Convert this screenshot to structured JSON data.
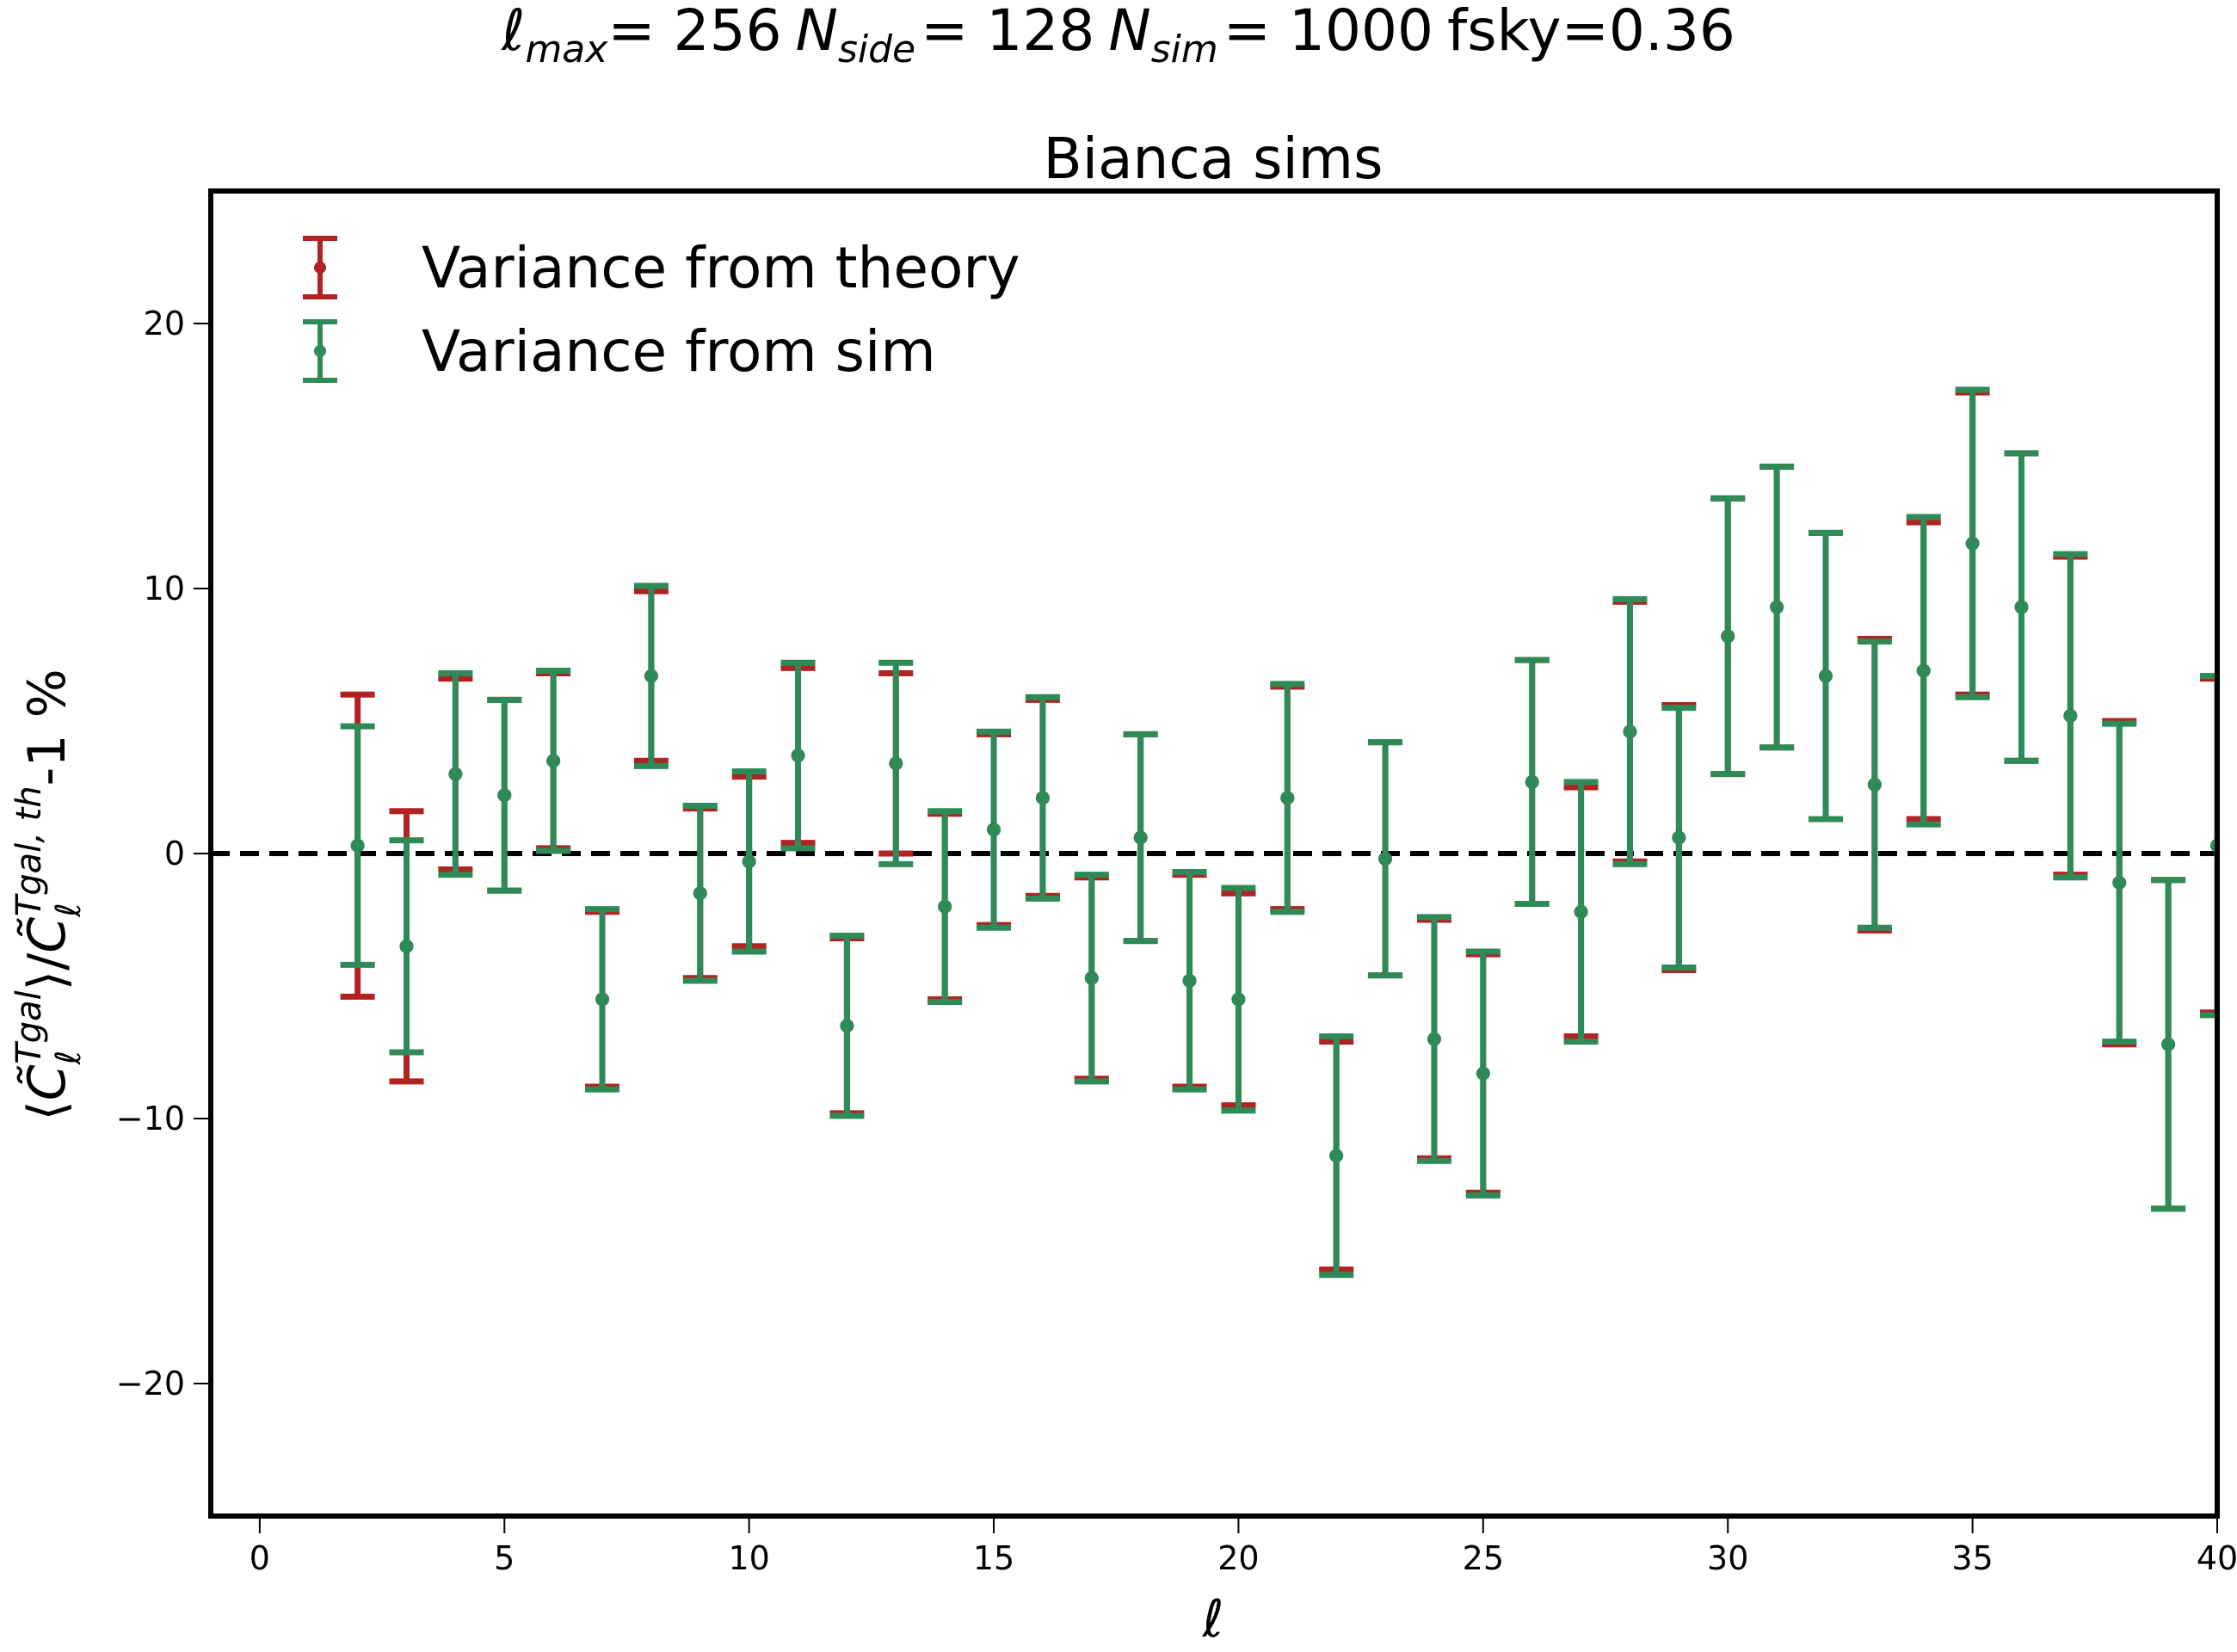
{
  "chart_data": {
    "type": "errorbar",
    "suptitle": {
      "lmax_sym": "ℓ",
      "lmax_sub": "max",
      "lmax_val": "= 256",
      "nside_sym": "N",
      "nside_sub": "side",
      "nside_val": "= 128",
      "nsim_sym": "N",
      "nsim_sub": "sim",
      "nsim_val": "= 1000",
      "fsky": "fsky=0.36"
    },
    "title": "Bianca sims",
    "xlabel": "ℓ",
    "ylabel": "⟨C̃ℓTgal⟩/C̃ℓTgal, th-1 %",
    "xlim": [
      -1,
      40
    ],
    "ylim": [
      -25,
      25
    ],
    "xticks": [
      0,
      5,
      10,
      15,
      20,
      25,
      30,
      35,
      40
    ],
    "yticks": [
      -20,
      -10,
      0,
      10,
      20
    ],
    "ytick_labels": [
      "−20",
      "−10",
      "0",
      "10",
      "20"
    ],
    "reference_line": {
      "y": 0,
      "style": "dashed",
      "color": "#000000"
    },
    "legend": {
      "position": "upper-left"
    },
    "series": [
      {
        "name": "Variance from theory",
        "color": "#b22222",
        "x": [
          2,
          3,
          4,
          5,
          6,
          7,
          8,
          9,
          10,
          11,
          12,
          13,
          14,
          15,
          16,
          17,
          18,
          19,
          20,
          21,
          22,
          23,
          24,
          25,
          26,
          27,
          28,
          29,
          30,
          31,
          32,
          33,
          34,
          35,
          36,
          37,
          38,
          39,
          40
        ],
        "y": [
          0.3,
          -3.5,
          3.0,
          2.2,
          3.5,
          -5.5,
          6.7,
          -1.5,
          -0.3,
          3.7,
          -6.5,
          3.4,
          -2.0,
          0.9,
          2.1,
          -4.7,
          0.6,
          -4.8,
          -5.5,
          2.1,
          -11.4,
          -0.2,
          -7.0,
          -8.3,
          2.7,
          -2.2,
          4.6,
          0.6,
          8.2,
          9.3,
          6.7,
          2.6,
          6.9,
          11.7,
          9.3,
          5.2,
          -1.1,
          -7.2,
          0.3
        ],
        "yerr": [
          5.7,
          5.1,
          3.6,
          3.6,
          3.3,
          3.3,
          3.2,
          3.2,
          3.2,
          3.3,
          3.3,
          3.4,
          3.5,
          3.6,
          3.7,
          3.8,
          3.9,
          4.0,
          4.0,
          4.2,
          4.3,
          4.4,
          4.5,
          4.5,
          4.6,
          4.7,
          4.9,
          5.0,
          5.2,
          5.3,
          5.4,
          5.5,
          5.6,
          5.7,
          5.8,
          6.0,
          6.1,
          6.2,
          6.3
        ]
      },
      {
        "name": "Variance from sim",
        "color": "#2e8b57",
        "x": [
          2,
          3,
          4,
          5,
          6,
          7,
          8,
          9,
          10,
          11,
          12,
          13,
          14,
          15,
          16,
          17,
          18,
          19,
          20,
          21,
          22,
          23,
          24,
          25,
          26,
          27,
          28,
          29,
          30,
          31,
          32,
          33,
          34,
          35,
          36,
          37,
          38,
          39,
          40
        ],
        "y": [
          0.3,
          -3.5,
          3.0,
          2.2,
          3.5,
          -5.5,
          6.7,
          -1.5,
          -0.3,
          3.7,
          -6.5,
          3.4,
          -2.0,
          0.9,
          2.1,
          -4.7,
          0.6,
          -4.8,
          -5.5,
          2.1,
          -11.4,
          -0.2,
          -7.0,
          -8.3,
          2.7,
          -2.2,
          4.6,
          0.6,
          8.2,
          9.3,
          6.7,
          2.6,
          6.9,
          11.7,
          9.3,
          5.2,
          -1.1,
          -7.2,
          0.3
        ],
        "yerr": [
          4.5,
          4.0,
          3.8,
          3.6,
          3.4,
          3.4,
          3.4,
          3.3,
          3.4,
          3.5,
          3.4,
          3.8,
          3.6,
          3.7,
          3.8,
          3.9,
          3.9,
          4.1,
          4.2,
          4.3,
          4.5,
          4.4,
          4.6,
          4.6,
          4.6,
          4.9,
          5.0,
          4.9,
          5.2,
          5.3,
          5.4,
          5.4,
          5.8,
          5.8,
          5.8,
          6.1,
          6.0,
          6.2,
          6.4
        ]
      }
    ]
  }
}
